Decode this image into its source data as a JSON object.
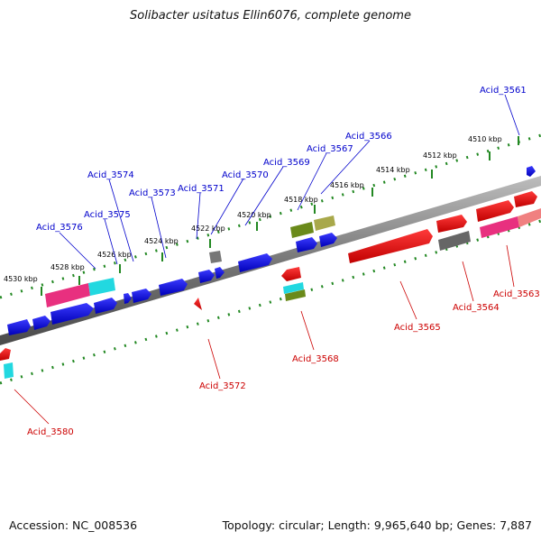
{
  "title": "Solibacter usitatus Ellin6076, complete genome",
  "footer": {
    "accession": "Accession: NC_008536",
    "topology": "Topology: circular; Length: 9,965,640 bp; Genes: 7,887"
  },
  "ticks": [
    "4510 kbp",
    "4512 kbp",
    "4514 kbp",
    "4516 kbp",
    "4518 kbp",
    "4520 kbp",
    "4522 kbp",
    "4524 kbp",
    "4526 kbp",
    "4528 kbp",
    "4530 kbp"
  ],
  "genes_top": [
    "Acid_3561",
    "Acid_3566",
    "Acid_3567",
    "Acid_3569",
    "Acid_3570",
    "Acid_3571",
    "Acid_3573",
    "Acid_3574",
    "Acid_3575",
    "Acid_3576"
  ],
  "genes_bottom": [
    "Acid_3563",
    "Acid_3564",
    "Acid_3565",
    "Acid_3568",
    "Acid_3572",
    "Acid_3580"
  ],
  "colors": {
    "forward": "#0000ee",
    "reverse": "#ee0000",
    "tick": "#228822",
    "backbone": "#888888"
  }
}
